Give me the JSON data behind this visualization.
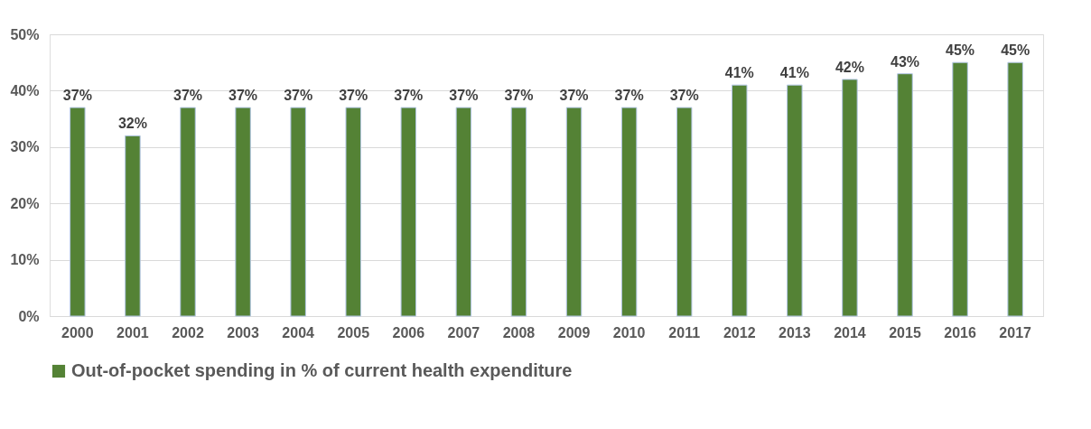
{
  "chart_data": {
    "type": "bar",
    "categories": [
      "2000",
      "2001",
      "2002",
      "2003",
      "2004",
      "2005",
      "2006",
      "2007",
      "2008",
      "2009",
      "2010",
      "2011",
      "2012",
      "2013",
      "2014",
      "2015",
      "2016",
      "2017"
    ],
    "series": [
      {
        "name": "Out-of-pocket spending in % of current health expenditure",
        "color": "#548235",
        "values": [
          37,
          32,
          37,
          37,
          37,
          37,
          37,
          37,
          37,
          37,
          37,
          37,
          41,
          41,
          42,
          43,
          45,
          45
        ]
      }
    ],
    "value_labels": [
      "37%",
      "32%",
      "37%",
      "37%",
      "37%",
      "37%",
      "37%",
      "37%",
      "37%",
      "37%",
      "37%",
      "37%",
      "41%",
      "41%",
      "42%",
      "43%",
      "45%",
      "45%"
    ],
    "ylim": [
      0,
      50
    ],
    "yticks": [
      {
        "value": 0,
        "label": "0%"
      },
      {
        "value": 10,
        "label": "10%"
      },
      {
        "value": 20,
        "label": "20%"
      },
      {
        "value": 30,
        "label": "30%"
      },
      {
        "value": 40,
        "label": "40%"
      },
      {
        "value": 50,
        "label": "50%"
      }
    ],
    "grid": "y",
    "legend": "bottom"
  }
}
